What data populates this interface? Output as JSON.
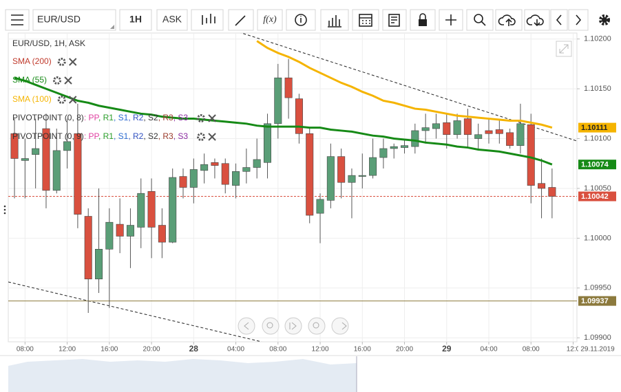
{
  "toolbar": {
    "symbol": "EUR/USD",
    "timeframe": "1H",
    "price_type": "ASK",
    "function": "f(x)"
  },
  "chart_data": {
    "type": "candlestick",
    "title": "EUR/USD, 1H, ASK",
    "up_color": "#5a9e77",
    "down_color": "#d9503f",
    "grid": true,
    "date_label": "29.11.2019",
    "x": [
      0,
      1,
      2,
      3,
      4,
      5,
      6,
      7,
      8,
      9,
      10,
      11,
      12,
      13,
      14,
      15,
      16,
      17,
      18,
      19,
      20,
      21,
      22,
      23,
      24,
      25,
      26,
      27,
      28,
      29,
      30,
      31,
      32,
      33,
      34,
      35,
      36,
      37,
      38,
      39,
      40,
      41,
      42,
      43,
      44,
      45,
      46,
      47,
      48,
      49,
      50,
      51
    ],
    "open": [
      1.10105,
      1.10078,
      1.10084,
      1.1011,
      1.10048,
      1.10088,
      1.10105,
      1.10022,
      1.09959,
      1.09989,
      1.10014,
      1.10002,
      1.10011,
      1.10047,
      1.10013,
      1.09996,
      1.10062,
      1.10051,
      1.10068,
      1.10076,
      1.10075,
      1.10053,
      1.10067,
      1.10071,
      1.10076,
      1.10115,
      1.10161,
      1.1014,
      1.10105,
      1.10025,
      1.10038,
      1.10082,
      1.10056,
      1.10062,
      1.10063,
      1.10081,
      1.1009,
      1.10091,
      1.10092,
      1.10108,
      1.1011,
      1.10116,
      1.10104,
      1.1012,
      1.101,
      1.10108,
      1.10109,
      1.10106,
      1.10093,
      1.10114,
      1.10055,
      1.10051
    ],
    "high": [
      1.1012,
      1.101,
      1.1012,
      1.10125,
      1.1011,
      1.1012,
      1.10135,
      1.1003,
      1.1005,
      1.1003,
      1.1004,
      1.1003,
      1.1006,
      1.1006,
      1.1003,
      1.1007,
      1.1007,
      1.1008,
      1.10085,
      1.1008,
      1.1008,
      1.10075,
      1.1009,
      1.101,
      1.10125,
      1.10175,
      1.1018,
      1.10145,
      1.1011,
      1.10045,
      1.10095,
      1.1009,
      1.1007,
      1.10085,
      1.101,
      1.101,
      1.10095,
      1.101,
      1.10115,
      1.10125,
      1.10125,
      1.10125,
      1.10125,
      1.1013,
      1.10115,
      1.1012,
      1.1012,
      1.1011,
      1.10135,
      1.10125,
      1.1008,
      1.1007
    ],
    "low": [
      1.1004,
      1.1004,
      1.1005,
      1.1003,
      1.10045,
      1.1007,
      1.1001,
      1.09925,
      1.09945,
      1.0993,
      1.09985,
      1.0997,
      1.0999,
      1.0998,
      1.0998,
      1.09995,
      1.1004,
      1.10035,
      1.10055,
      1.1006,
      1.10045,
      1.1004,
      1.10055,
      1.1006,
      1.1006,
      1.101,
      1.1012,
      1.10095,
      1.10015,
      1.09995,
      1.1003,
      1.1004,
      1.1002,
      1.1005,
      1.1006,
      1.1007,
      1.1008,
      1.10085,
      1.10085,
      1.10095,
      1.101,
      1.1009,
      1.101,
      1.1009,
      1.1009,
      1.10095,
      1.10095,
      1.1009,
      1.10085,
      1.10035,
      1.1002,
      1.1002
    ],
    "close": [
      1.1008,
      1.1008,
      1.1009,
      1.10048,
      1.10088,
      1.10097,
      1.10024,
      1.09959,
      1.09989,
      1.10016,
      1.10002,
      1.10013,
      1.10045,
      1.10011,
      1.09996,
      1.10061,
      1.10051,
      1.10069,
      1.10074,
      1.10073,
      1.10054,
      1.10067,
      1.10071,
      1.10079,
      1.10115,
      1.10161,
      1.10141,
      1.10105,
      1.10023,
      1.10039,
      1.10082,
      1.10056,
      1.10063,
      1.10063,
      1.10081,
      1.1009,
      1.10092,
      1.10093,
      1.10108,
      1.10111,
      1.10115,
      1.10104,
      1.10118,
      1.10104,
      1.10104,
      1.10105,
      1.10105,
      1.10093,
      1.10115,
      1.10053,
      1.1005,
      1.10042
    ],
    "series": [
      {
        "name": "SMA (55)",
        "color": "#168a16",
        "values": [
          1.10161,
          1.10158,
          1.10154,
          1.1015,
          1.10146,
          1.10142,
          1.10138,
          1.10136,
          1.10133,
          1.10131,
          1.10129,
          1.10127,
          1.10125,
          1.10124,
          1.10122,
          1.10121,
          1.1012,
          1.1012,
          1.10119,
          1.10118,
          1.10117,
          1.10116,
          1.10115,
          1.10113,
          1.10112,
          1.10112,
          1.10112,
          1.10112,
          1.10111,
          1.10111,
          1.10109,
          1.10108,
          1.10107,
          1.10105,
          1.10103,
          1.10102,
          1.101,
          1.10099,
          1.10098,
          1.10096,
          1.10095,
          1.10094,
          1.10092,
          1.10091,
          1.10089,
          1.10088,
          1.10087,
          1.10085,
          1.10083,
          1.10081,
          1.10078,
          1.10074
        ]
      },
      {
        "name": "SMA (100)",
        "color": "#f5b400",
        "values": [
          null,
          null,
          null,
          null,
          null,
          null,
          null,
          null,
          null,
          null,
          null,
          null,
          null,
          null,
          null,
          null,
          null,
          null,
          null,
          null,
          null,
          null,
          null,
          1.10198,
          1.10191,
          1.10186,
          1.10182,
          1.10177,
          1.10171,
          1.10166,
          1.10161,
          1.10156,
          1.10152,
          1.10147,
          1.10143,
          1.10138,
          1.10136,
          1.10133,
          1.1013,
          1.10129,
          1.10127,
          1.10125,
          1.10123,
          1.10122,
          1.10121,
          1.1012,
          1.10119,
          1.10118,
          1.10118,
          1.10116,
          1.10114,
          1.10111
        ]
      }
    ],
    "extra_indicators": [
      {
        "name": "SMA (200)",
        "color": "#c0392b"
      }
    ],
    "pivots": [
      {
        "name": "PIVOTPOINT (0, 8)",
        "parts": [
          {
            "text": ": PP",
            "color": "#e040a0"
          },
          {
            "text": ", R1",
            "color": "#2a9d2a"
          },
          {
            "text": ", S1",
            "color": "#2a6ad0"
          },
          {
            "text": ", R2",
            "color": "#3050c0"
          },
          {
            "text": ", S2",
            "color": "#333333"
          },
          {
            "text": ", R3",
            "color": "#9a3a2a"
          },
          {
            "text": ", S3",
            "color": "#8a2aa0"
          }
        ]
      },
      {
        "name": "PIVOTPOINT (0, 9)",
        "parts": [
          {
            "text": ": PP",
            "color": "#e040a0"
          },
          {
            "text": ", R1",
            "color": "#2a9d2a"
          },
          {
            "text": ", S1",
            "color": "#2a6ad0"
          },
          {
            "text": ", R2",
            "color": "#3050c0"
          },
          {
            "text": ", S2",
            "color": "#333333"
          },
          {
            "text": ", R3",
            "color": "#9a3a2a"
          },
          {
            "text": ", S3",
            "color": "#8a2aa0"
          }
        ]
      }
    ],
    "price_labels": [
      {
        "value": 1.10111,
        "color": "#f5b400",
        "text_color": "#222222",
        "line": "none"
      },
      {
        "value": 1.10074,
        "color": "#168a16",
        "text_color": "#ffffff",
        "line": "none"
      },
      {
        "value": 1.10042,
        "color": "#d9503f",
        "text_color": "#ffffff",
        "line": "dashed"
      },
      {
        "value": 1.09937,
        "color": "#8c7a3d",
        "text_color": "#ffffff",
        "line": "solid"
      }
    ],
    "xlim": [
      -0.59,
      53.36
    ],
    "ylim": [
      1.09896,
      1.10206
    ],
    "xticks": [
      {
        "value": 1,
        "label": "08:00"
      },
      {
        "value": 5,
        "label": "12:00"
      },
      {
        "value": 9,
        "label": "16:00"
      },
      {
        "value": 13,
        "label": "20:00"
      },
      {
        "value": 17,
        "label": "28"
      },
      {
        "value": 21,
        "label": "04:00"
      },
      {
        "value": 25,
        "label": "08:00"
      },
      {
        "value": 29,
        "label": "12:00"
      },
      {
        "value": 33,
        "label": "16:00"
      },
      {
        "value": 37,
        "label": "20:00"
      },
      {
        "value": 41,
        "label": "29"
      },
      {
        "value": 45,
        "label": "04:00"
      },
      {
        "value": 49,
        "label": "08:00"
      },
      {
        "value": 53,
        "label": "12:0"
      }
    ],
    "yticks": [
      {
        "value": 1.102,
        "label": "1.10200"
      },
      {
        "value": 1.1015,
        "label": "1.10150"
      },
      {
        "value": 1.101,
        "label": "1.10100"
      },
      {
        "value": 1.1005,
        "label": "1.10050"
      },
      {
        "value": 1.1,
        "label": "1.10000"
      },
      {
        "value": 1.0995,
        "label": "1.09950"
      },
      {
        "value": 1.099,
        "label": "1.09900"
      }
    ]
  }
}
